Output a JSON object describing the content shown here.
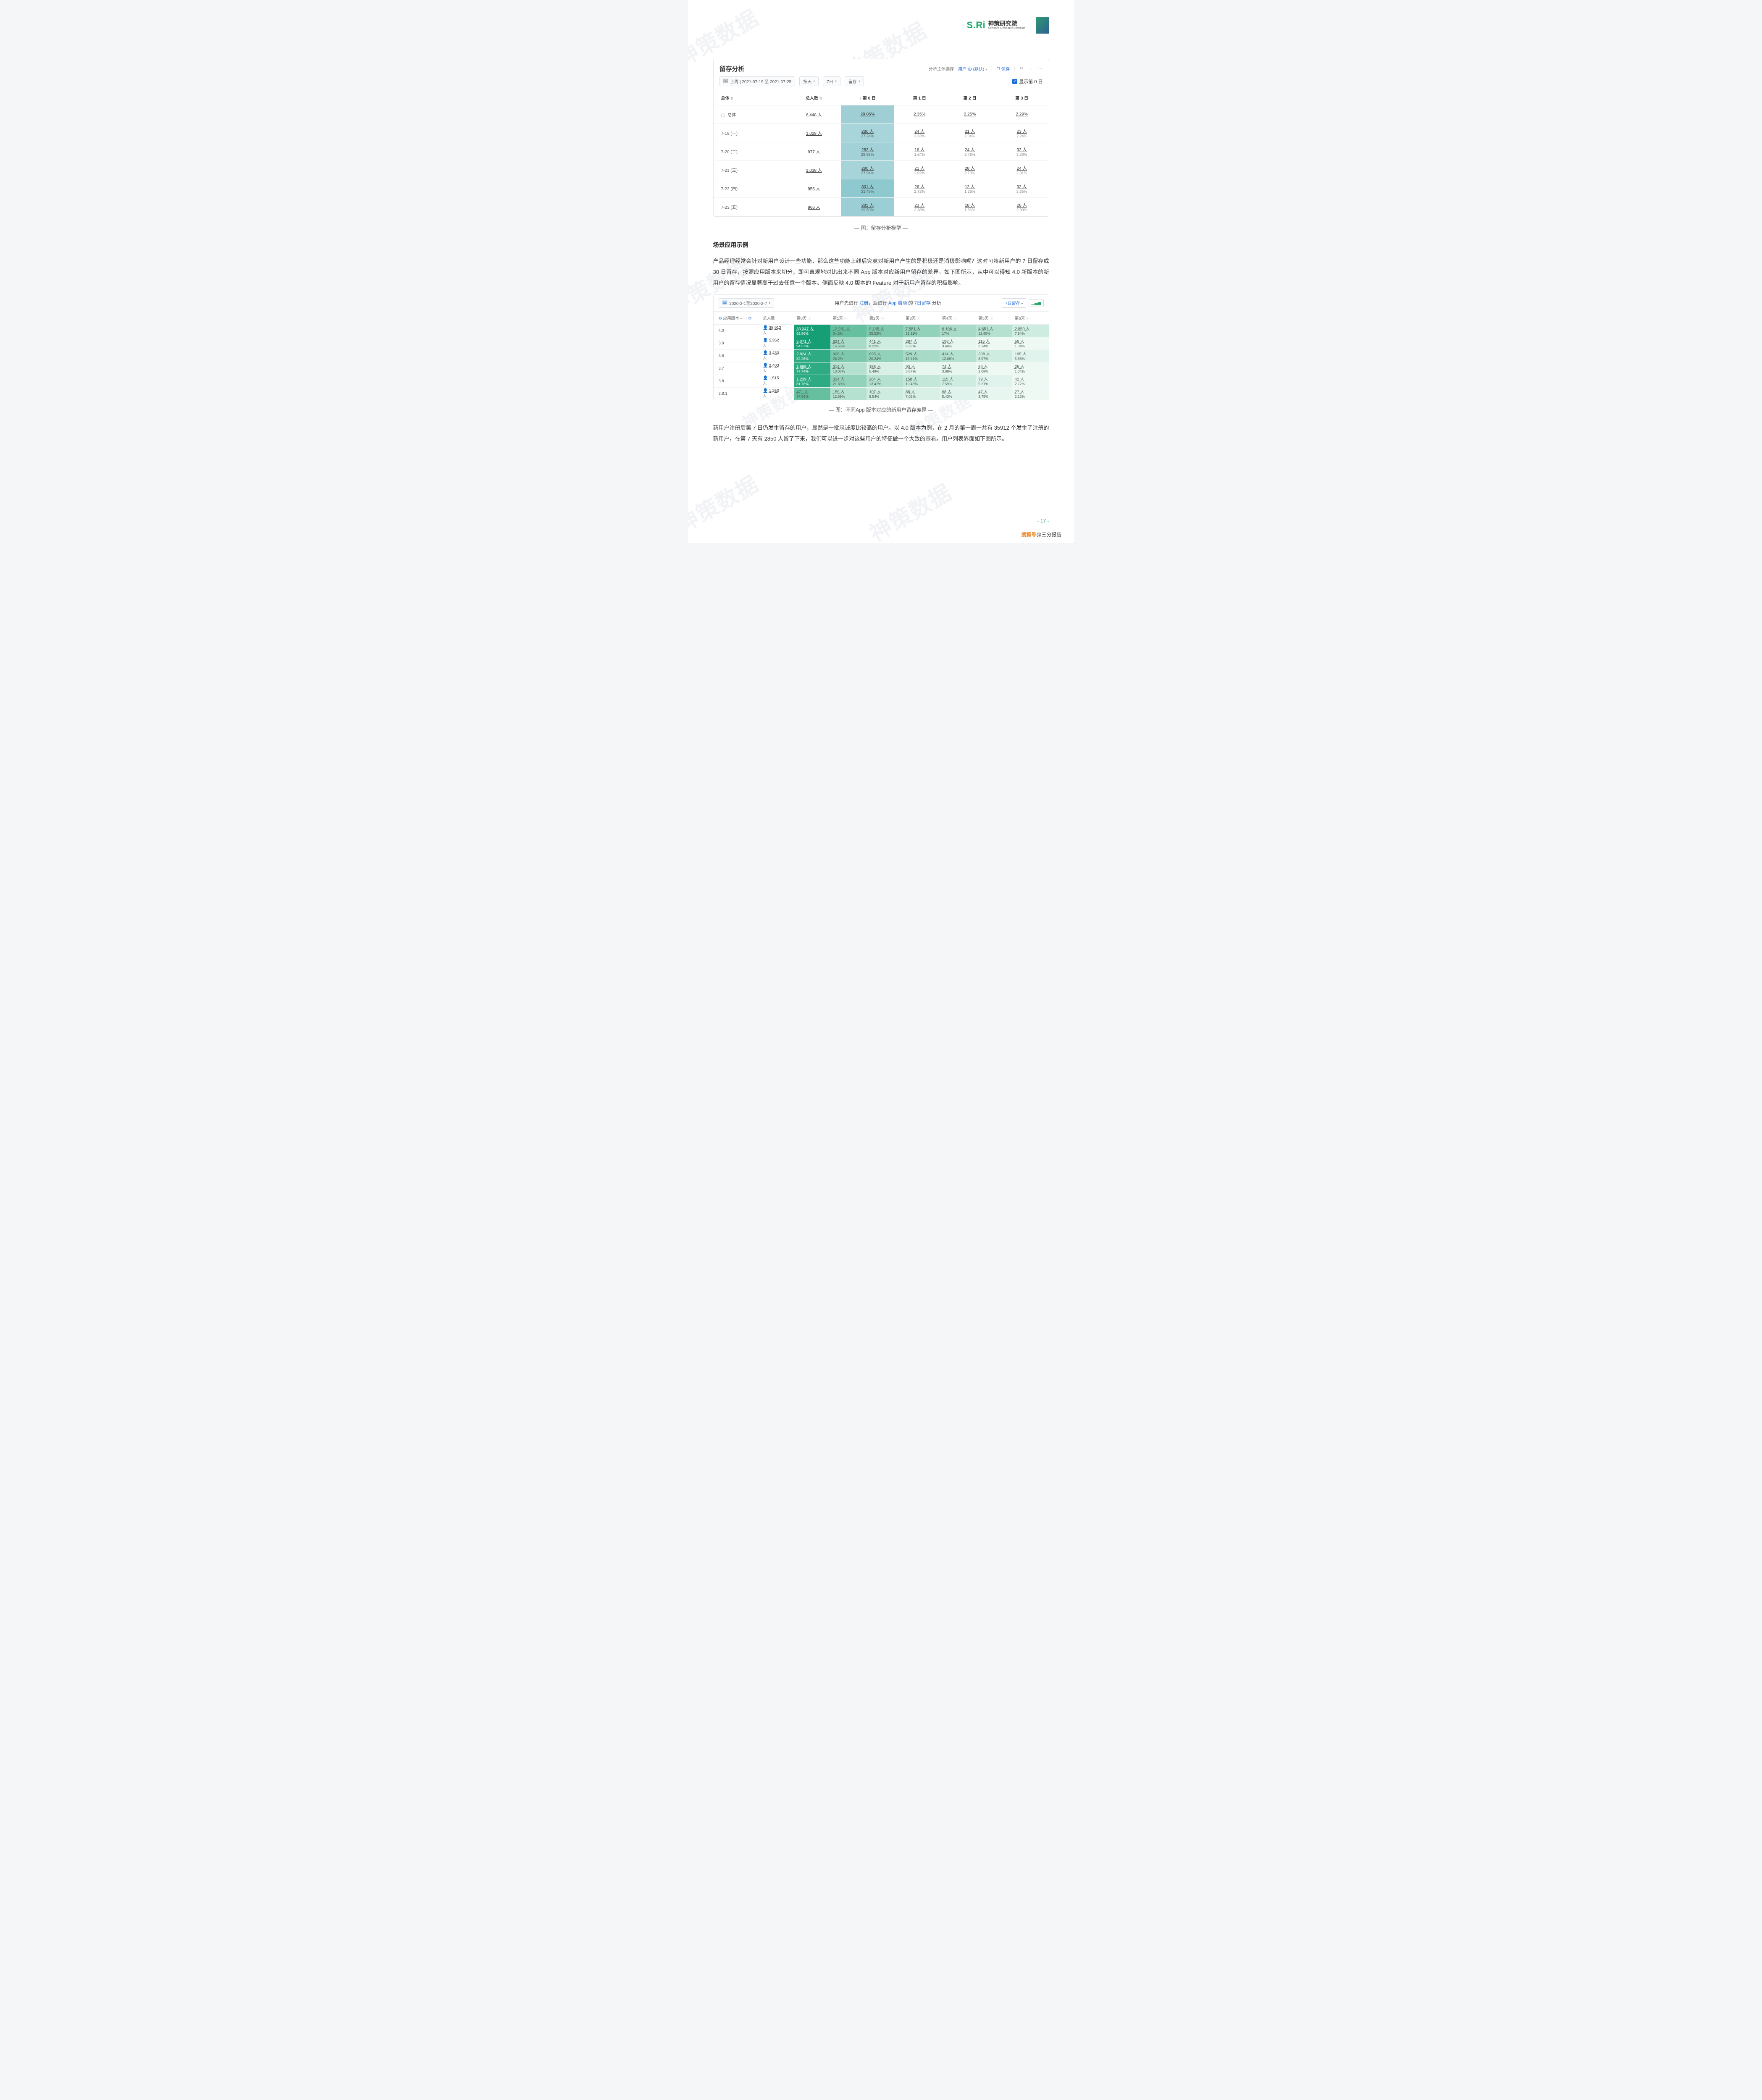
{
  "brand": {
    "sri": "S.Ri",
    "cn": "神策研究院",
    "en": "Sensors Research Institute"
  },
  "panel1": {
    "title": "留存分析",
    "subject_label": "分析主体选择",
    "subject_value": "用户 ID (默认)",
    "save_label": "保存",
    "date_label": "上周 | 2021-07-19 至 2021-07-25",
    "unit_label": "按天",
    "span_label": "7日",
    "metric_label": "留存",
    "show_day0_label": "显示第 0 日",
    "columns": [
      "总体",
      "总人数",
      "第 0 日",
      "第 1 日",
      "第 2 日",
      "第 3 日"
    ],
    "info_icon": "?",
    "rows": [
      {
        "label": "总体",
        "isOverall": true,
        "total": "6,448 人",
        "d0": "29.06%",
        "d1": "2.35%",
        "d2": "2.25%",
        "d3": "2.29%"
      },
      {
        "label": "7-19 (一)",
        "total": "1,028 人",
        "shade": "#a8d5da",
        "d0_a": "280 人",
        "d0_b": "27.24%",
        "d1_a": "24 人",
        "d1_b": "2.33%",
        "d2_a": "21 人",
        "d2_b": "2.04%",
        "d3_a": "23 人",
        "d3_b": "2.24%"
      },
      {
        "label": "7-20 (二)",
        "total": "977 人",
        "shade": "#a2d2d7",
        "d0_a": "282 人",
        "d0_b": "28.86%",
        "d1_a": "16 人",
        "d1_b": "1.64%",
        "d2_a": "24 人",
        "d2_b": "2.46%",
        "d3_a": "32 人",
        "d3_b": "3.28%"
      },
      {
        "label": "7-21 (三)",
        "total": "1,038 人",
        "shade": "#a6d4d9",
        "d0_a": "290 人",
        "d0_b": "27.94%",
        "d1_a": "21 人",
        "d1_b": "2.02%",
        "d2_a": "28 人",
        "d2_b": "2.70%",
        "d3_a": "24 人",
        "d3_b": "2.31%"
      },
      {
        "label": "7-22 (四)",
        "total": "956 人",
        "shade": "#8fc9d0",
        "d0_a": "301 人",
        "d0_b": "31.49%",
        "d1_a": "26 人",
        "d1_b": "2.72%",
        "d2_a": "12 人",
        "d2_b": "1.26%",
        "d3_a": "32 人",
        "d3_b": "3.35%"
      },
      {
        "label": "7-23 (五)",
        "total": "966 人",
        "shade": "#9ccfd5",
        "d0_a": "285 人",
        "d0_b": "29.50%",
        "d1_a": "23 人",
        "d1_b": "2.38%",
        "d2_a": "18 人",
        "d2_b": "1.86%",
        "d3_a": "28 人",
        "d3_b": "2.90%"
      }
    ],
    "caption": "— 图：留存分析模型 —"
  },
  "section_title": "场景应用示例",
  "p1": "产品经理经常会针对新用户设计一些功能，那么这些功能上线后究竟对新用户产生的是积极还是消极影响呢？这时可将新用户的 7 日留存或 30 日留存，按照应用版本来切分，即可直观地对比出来不同 App 版本对应新用户留存的差异。如下图所示，从中可以得知 4.0 新版本的新用户的留存情况显著高于过去任意一个版本。侧面反映 4.0 版本的 Feature 对于新用户留存的积极影响。",
  "panel2": {
    "date_range": "2020-2-1至2020-2-7",
    "title_parts": {
      "a": "用户先进行 ",
      "b": "注册",
      "c": "，后进行 ",
      "d": "App 启动",
      "e": " 的 ",
      "f": "7日留存",
      "g": " 分析"
    },
    "selector": "7日留存",
    "group_label": "应用版本",
    "columns": [
      "总人数",
      "第0天",
      "第1天",
      "第2天",
      "第3天",
      "第4天",
      "第5天",
      "第6天"
    ],
    "palette": {
      "90": "#169e74",
      "80": "#2eab82",
      "30": "#66bf9f",
      "25": "#7ec9ad",
      "20": "#93d2ba",
      "15": "#a7dbc7",
      "12": "#b5e1d0",
      "10": "#c3e7d9",
      "8": "#cfece0",
      "6": "#d9f0e7",
      "5": "#e0f3ec",
      "3": "#e8f6f0",
      "2": "#eef9f4"
    },
    "rows": [
      {
        "label": "4.0",
        "total": "35,912",
        "cells": [
          {
            "a": "33,347 人",
            "b": "92.86%",
            "k": "90"
          },
          {
            "a": "12,281 人",
            "b": "34.2%",
            "k": "30"
          },
          {
            "a": "9,165 人",
            "b": "25.52%",
            "k": "25"
          },
          {
            "a": "7,581 人",
            "b": "21.11%",
            "k": "20"
          },
          {
            "a": "6,106 人",
            "b": "17%",
            "k": "15"
          },
          {
            "a": "4,651 人",
            "b": "12.95%",
            "k": "12"
          },
          {
            "a": "2,850 人",
            "b": "7.94%",
            "k": "8"
          }
        ]
      },
      {
        "label": "3.9",
        "total": "5,362",
        "cells": [
          {
            "a": "5,071 人",
            "b": "94.57%",
            "k": "90"
          },
          {
            "a": "834 人",
            "b": "15.55%",
            "k": "15"
          },
          {
            "a": "441 人",
            "b": "8.22%",
            "k": "8"
          },
          {
            "a": "287 人",
            "b": "5.35%",
            "k": "5"
          },
          {
            "a": "198 人",
            "b": "3.69%",
            "k": "3"
          },
          {
            "a": "115 人",
            "b": "2.14%",
            "k": "2"
          },
          {
            "a": "56 人",
            "b": "1.04%",
            "k": "2"
          }
        ]
      },
      {
        "label": "3.6",
        "total": "3,433",
        "cells": [
          {
            "a": "2,824 人",
            "b": "82.26%",
            "k": "80"
          },
          {
            "a": "968 人",
            "b": "28.2%",
            "k": "25"
          },
          {
            "a": "695 人",
            "b": "20.24%",
            "k": "20"
          },
          {
            "a": "529 人",
            "b": "15.41%",
            "k": "15"
          },
          {
            "a": "414 人",
            "b": "12.06%",
            "k": "12"
          },
          {
            "a": "308 人",
            "b": "8.97%",
            "k": "8"
          },
          {
            "a": "195 人",
            "b": "5.68%",
            "k": "5"
          }
        ]
      },
      {
        "label": "3.7",
        "total": "2,403",
        "cells": [
          {
            "a": "1,868 人",
            "b": "77.74%",
            "k": "80"
          },
          {
            "a": "314 人",
            "b": "13.07%",
            "k": "12"
          },
          {
            "a": "156 人",
            "b": "6.49%",
            "k": "6"
          },
          {
            "a": "93 人",
            "b": "3.87%",
            "k": "3"
          },
          {
            "a": "74 人",
            "b": "3.08%",
            "k": "3"
          },
          {
            "a": "50 人",
            "b": "2.08%",
            "k": "2"
          },
          {
            "a": "25 人",
            "b": "1.04%",
            "k": "2"
          }
        ]
      },
      {
        "label": "3.8",
        "total": "1,515",
        "cells": [
          {
            "a": "1,239 人",
            "b": "81.78%",
            "k": "80"
          },
          {
            "a": "324 人",
            "b": "21.39%",
            "k": "20"
          },
          {
            "a": "204 人",
            "b": "13.47%",
            "k": "12"
          },
          {
            "a": "158 人",
            "b": "10.43%",
            "k": "10"
          },
          {
            "a": "115 人",
            "b": "7.59%",
            "k": "8"
          },
          {
            "a": "79 人",
            "b": "5.21%",
            "k": "5"
          },
          {
            "a": "42 人",
            "b": "2.77%",
            "k": "2"
          }
        ]
      },
      {
        "label": "3.8.1",
        "total": "1,253",
        "cells": [
          {
            "a": "471 人",
            "b": "37.59%",
            "k": "30"
          },
          {
            "a": "159 人",
            "b": "12.69%",
            "k": "12"
          },
          {
            "a": "107 人",
            "b": "8.54%",
            "k": "8"
          },
          {
            "a": "88 人",
            "b": "7.02%",
            "k": "6"
          },
          {
            "a": "68 人",
            "b": "5.43%",
            "k": "5"
          },
          {
            "a": "47 人",
            "b": "3.75%",
            "k": "3"
          },
          {
            "a": "27 人",
            "b": "2.15%",
            "k": "2"
          }
        ]
      }
    ],
    "caption": "— 图：不同App 版本对应的新用户留存差异 —"
  },
  "p2": "新用户注册后第 7 日仍发生留存的用户，显然是一批忠诚度比较高的用户。以 4.0 版本为例，在 2 月的第一周一共有 35912 个发生了注册的新用户，在第 7 天有 2850 人留了下来，我们可以进一步对这些用户的特征做一个大致的查看。用户列表界面如下图所示。",
  "page_number": "- 17 -",
  "footer_brand": {
    "a": "搜狐号",
    "b": "@三分报告"
  },
  "watermark": "神策数据"
}
